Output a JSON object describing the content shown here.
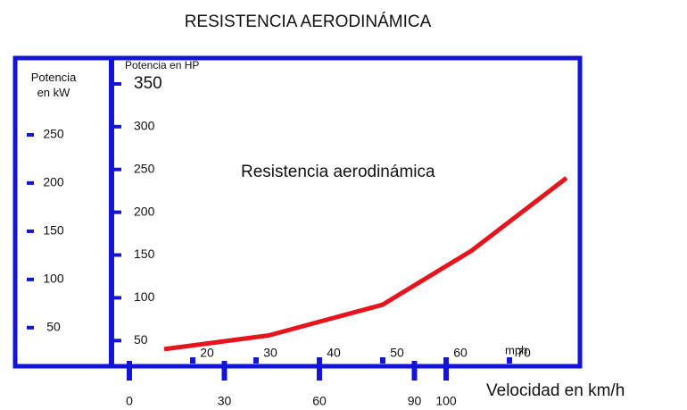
{
  "chart_data": {
    "type": "line",
    "title": "RESISTENCIA AERODINÁMICA",
    "annotation": "Resistencia aerodinámica",
    "xlabel": "Velocidad en km/h",
    "x2label": "mph",
    "ylabel": "Potencia en HP",
    "y2label": "Potencia en kW",
    "x": [
      11,
      44,
      80,
      108,
      138
    ],
    "values": [
      40,
      56,
      92,
      155,
      240
    ],
    "color": "#e8141c",
    "axis_color": "#1414d8",
    "xlim": [
      0,
      140
    ],
    "xticks": [
      0,
      30,
      60,
      90,
      100
    ],
    "x2lim": [
      10,
      80
    ],
    "x2ticks": [
      20,
      30,
      40,
      50,
      60,
      70
    ],
    "ylim": [
      20,
      375
    ],
    "yticks": [
      50,
      100,
      150,
      200,
      250,
      300,
      350
    ],
    "y2lim": [
      10,
      325
    ],
    "y2ticks": [
      50,
      100,
      150,
      200,
      250
    ]
  }
}
